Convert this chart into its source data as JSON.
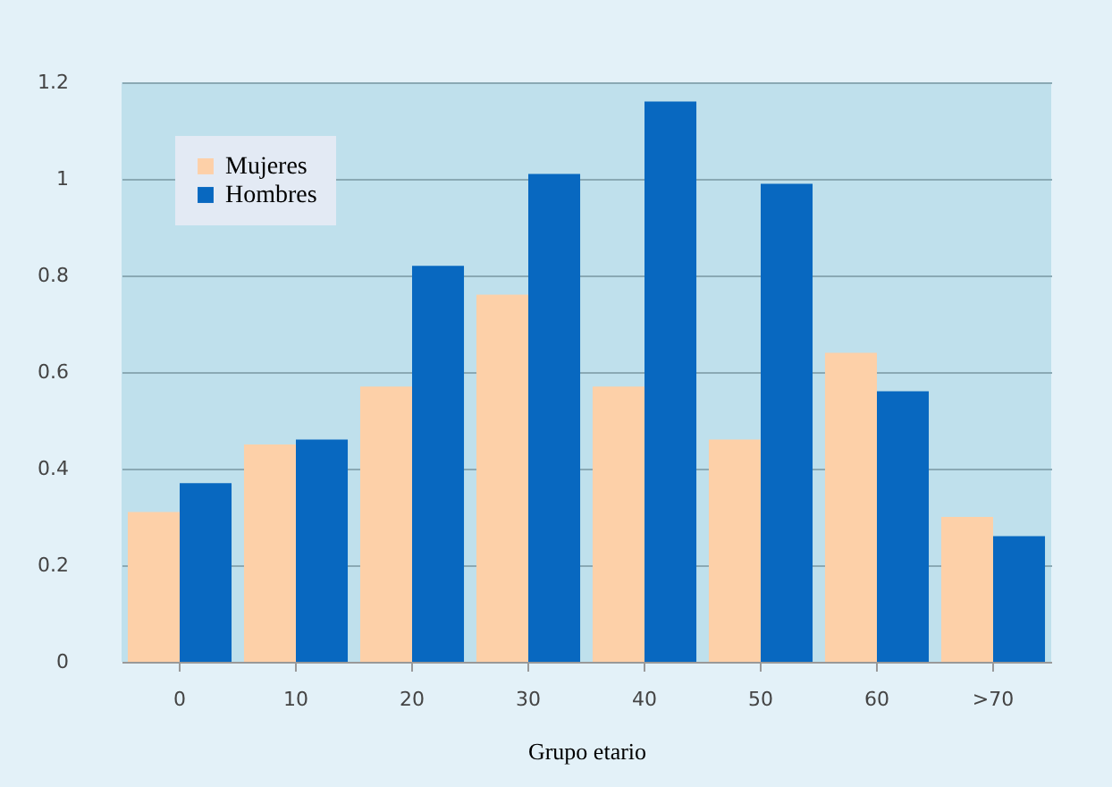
{
  "chart_data": {
    "type": "bar",
    "xlabel": "Grupo etario",
    "categories": [
      "0",
      "10",
      "20",
      "30",
      "40",
      "50",
      "60",
      ">70"
    ],
    "series": [
      {
        "name": "Mujeres",
        "color": "#fdd0a8",
        "values": [
          0.31,
          0.45,
          0.57,
          0.76,
          0.57,
          0.46,
          0.64,
          0.3
        ]
      },
      {
        "name": "Hombres",
        "color": "#0868c0",
        "values": [
          0.37,
          0.46,
          0.82,
          1.01,
          1.16,
          0.99,
          0.56,
          0.26
        ]
      }
    ],
    "ylim": [
      0,
      1.2
    ],
    "yticks": [
      0,
      0.2,
      0.4,
      0.6,
      0.8,
      1,
      1.2
    ],
    "grid": "y",
    "legend": "top left"
  }
}
